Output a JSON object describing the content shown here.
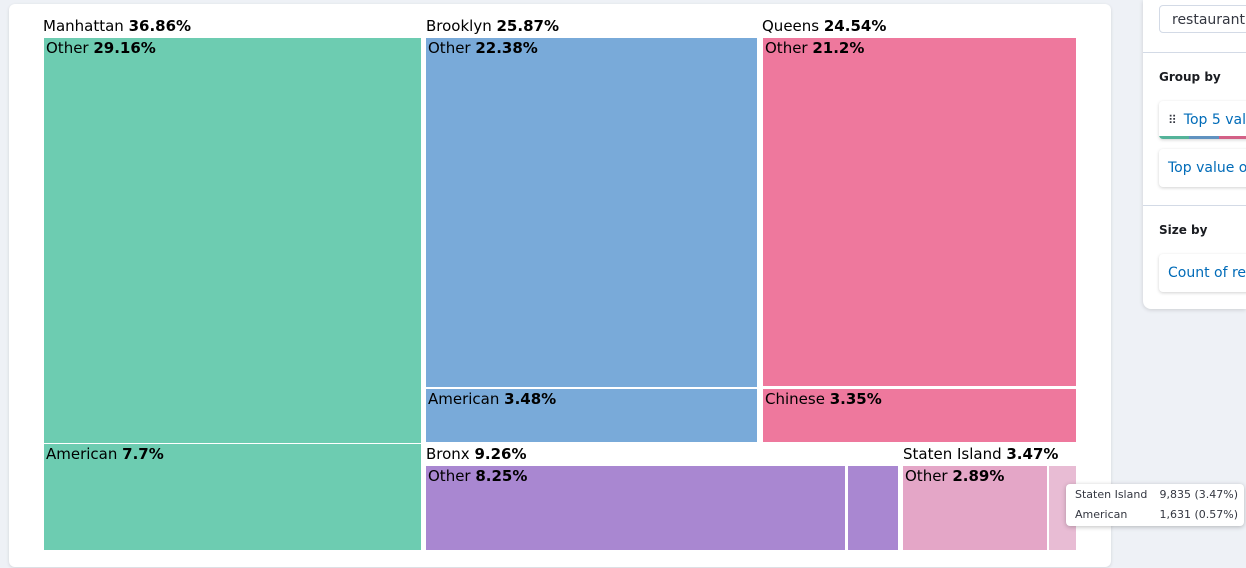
{
  "chart_data": {
    "type": "treemap",
    "value_format": "percent",
    "groups": [
      {
        "name": "Manhattan",
        "percent": "36.86%",
        "color": "#6dccb1",
        "children": [
          {
            "name": "Other",
            "percent": "29.16%"
          },
          {
            "name": "American",
            "percent": "7.7%"
          }
        ]
      },
      {
        "name": "Brooklyn",
        "percent": "25.87%",
        "color": "#79aad9",
        "children": [
          {
            "name": "Other",
            "percent": "22.38%"
          },
          {
            "name": "American",
            "percent": "3.48%"
          }
        ]
      },
      {
        "name": "Queens",
        "percent": "24.54%",
        "color": "#ee789d",
        "children": [
          {
            "name": "Other",
            "percent": "21.2%"
          },
          {
            "name": "Chinese",
            "percent": "3.35%"
          }
        ]
      },
      {
        "name": "Bronx",
        "percent": "9.26%",
        "color": "#a987d1",
        "children": [
          {
            "name": "Other",
            "percent": "8.25%"
          },
          {
            "name": "",
            "percent": ""
          }
        ]
      },
      {
        "name": "Staten Island",
        "percent": "3.47%",
        "color": "#e4a6c7",
        "children": [
          {
            "name": "Other",
            "percent": "2.89%"
          },
          {
            "name": "",
            "percent": "",
            "tint": "#e8bcd4"
          }
        ]
      }
    ]
  },
  "tooltip": {
    "rows": [
      {
        "label": "Staten Island",
        "value": "9,835 (3.47%)"
      },
      {
        "label": "American",
        "value": "1,631 (0.57%)"
      }
    ]
  },
  "sidebar": {
    "index_value": "restaurantm",
    "group_by": {
      "heading": "Group by",
      "cards": [
        {
          "label": "Top 5 val",
          "grip": "⠿"
        },
        {
          "label": "Top value of"
        }
      ]
    },
    "size_by": {
      "heading": "Size by",
      "card": {
        "label": "Count of rec"
      }
    }
  }
}
